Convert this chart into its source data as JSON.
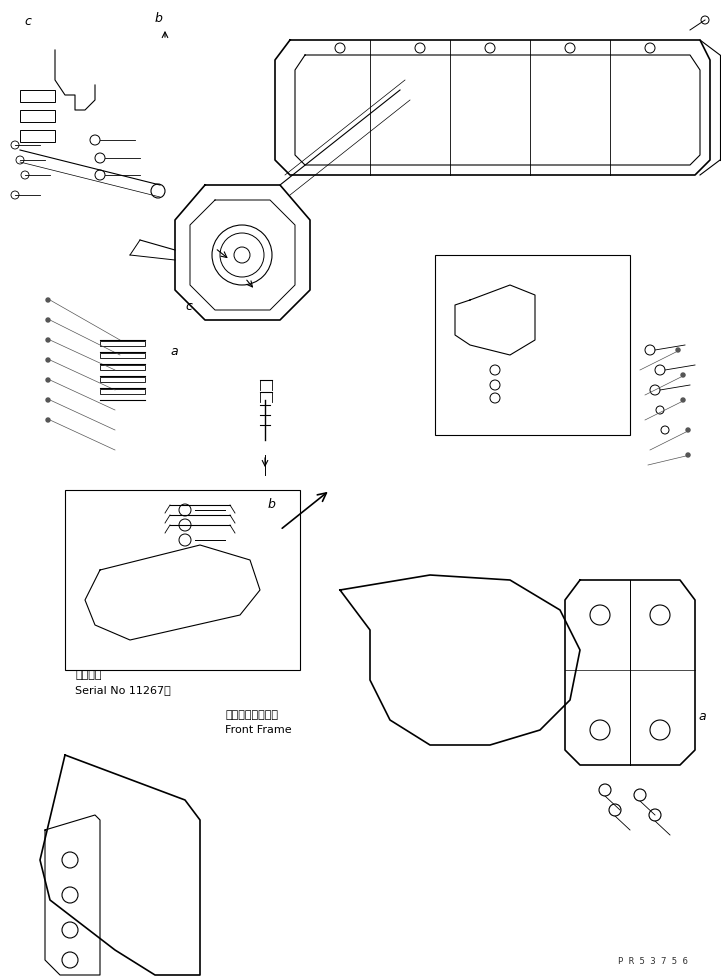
{
  "bg_color": "#ffffff",
  "line_color": "#000000",
  "fig_width": 7.21,
  "fig_height": 9.76,
  "dpi": 100,
  "watermark": "P R 5 3 7 5 6",
  "labels": {
    "serial_label1": "適用号機",
    "serial_label2": "Serial No 11267～",
    "front_frame1": "フロントフレーム",
    "front_frame2": "Front Frame",
    "label_a1": "a",
    "label_b1": "b",
    "label_c1": "c",
    "label_a2": "a",
    "label_b2": "b",
    "label_c2": "c"
  },
  "font_sizes": {
    "watermark": 6.5,
    "label_letter": 9,
    "serial": 8,
    "frame_label": 8
  }
}
